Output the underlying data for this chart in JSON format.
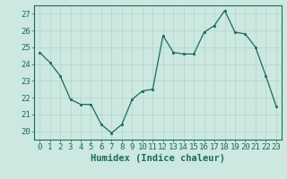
{
  "x": [
    0,
    1,
    2,
    3,
    4,
    5,
    6,
    7,
    8,
    9,
    10,
    11,
    12,
    13,
    14,
    15,
    16,
    17,
    18,
    19,
    20,
    21,
    22,
    23
  ],
  "y": [
    24.7,
    24.1,
    23.3,
    21.9,
    21.6,
    21.6,
    20.4,
    19.9,
    20.4,
    21.9,
    22.4,
    22.5,
    25.7,
    24.7,
    24.6,
    24.6,
    25.9,
    26.3,
    27.2,
    25.9,
    25.8,
    25.0,
    23.3,
    21.5
  ],
  "line_color": "#1a6b5a",
  "marker_color": "#1a6b5a",
  "bg_color": "#cce8e0",
  "grid_color": "#b0d4c8",
  "axis_color": "#1a6b5a",
  "tick_color": "#1a6b5a",
  "xlabel": "Humidex (Indice chaleur)",
  "ylim": [
    19.5,
    27.5
  ],
  "xlim": [
    -0.5,
    23.5
  ],
  "yticks": [
    20,
    21,
    22,
    23,
    24,
    25,
    26,
    27
  ],
  "xticks": [
    0,
    1,
    2,
    3,
    4,
    5,
    6,
    7,
    8,
    9,
    10,
    11,
    12,
    13,
    14,
    15,
    16,
    17,
    18,
    19,
    20,
    21,
    22,
    23
  ],
  "tick_fontsize": 6.5,
  "xlabel_fontsize": 7.5
}
